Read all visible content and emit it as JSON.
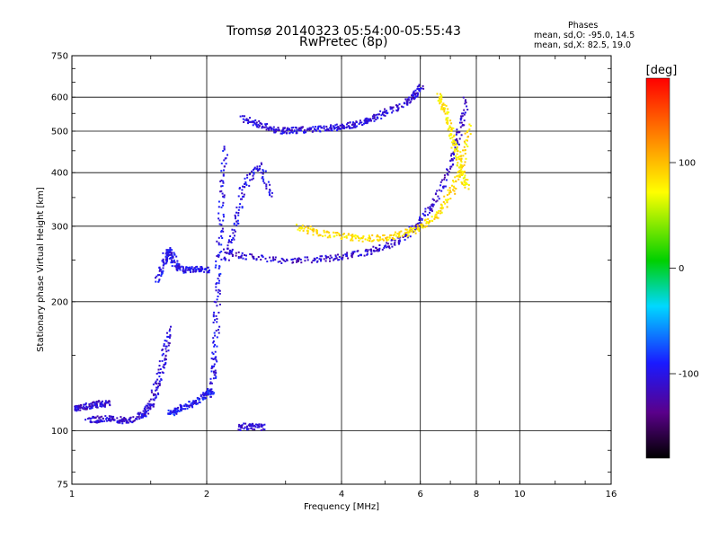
{
  "header": {
    "title_line1": "Tromsø 20140323 05:54:00-05:55:43",
    "title_line2": "RwPretec (8p)",
    "phases_title": "Phases",
    "phases_o": "mean, sd,O: -95.0, 14.5",
    "phases_x": "mean, sd,X:  82.5, 19.0"
  },
  "chart_data": {
    "type": "scatter",
    "title": "Tromsø 20140323 05:54:00-05:55:43",
    "subtitle": "RwPretec (8p)",
    "xlabel": "Frequency [MHz]",
    "ylabel": "Stationary phase Virtual Height [km]",
    "x_scale": "log",
    "y_scale": "log",
    "xlim": [
      1,
      16
    ],
    "ylim": [
      75,
      750
    ],
    "x_ticks": [
      1,
      2,
      4,
      6,
      8,
      10,
      16
    ],
    "y_ticks": [
      75,
      100,
      200,
      300,
      400,
      500,
      600,
      750
    ],
    "grid": true,
    "colorbar": {
      "label": "[deg]",
      "range": [
        -180,
        180
      ],
      "ticks": [
        100,
        0,
        -100
      ]
    },
    "traces": [
      {
        "x": [
          1.0,
          1.05,
          1.1,
          1.15,
          1.2
        ],
        "y": [
          113,
          114,
          115,
          116,
          116
        ],
        "phase": -110
      },
      {
        "x": [
          1.08,
          1.15,
          1.22,
          1.3,
          1.38
        ],
        "y": [
          106,
          107,
          107,
          106,
          107
        ],
        "phase": -108
      },
      {
        "x": [
          1.4,
          1.45,
          1.5,
          1.55,
          1.6,
          1.65
        ],
        "y": [
          108,
          110,
          116,
          130,
          150,
          175
        ],
        "phase": -105
      },
      {
        "x": [
          1.55,
          1.6,
          1.63,
          1.67,
          1.72,
          1.8,
          1.9,
          2.0
        ],
        "y": [
          225,
          250,
          265,
          255,
          240,
          238,
          240,
          238
        ],
        "phase": -100
      },
      {
        "x": [
          1.65,
          1.7,
          1.8,
          1.9,
          2.0,
          2.05
        ],
        "y": [
          110,
          112,
          115,
          118,
          122,
          125
        ],
        "phase": -95
      },
      {
        "x": [
          2.05,
          2.08,
          2.1,
          2.12,
          2.15,
          2.2
        ],
        "y": [
          130,
          150,
          200,
          260,
          350,
          470
        ],
        "phase": -100
      },
      {
        "x": [
          2.2,
          2.3,
          2.4,
          2.6,
          2.8
        ],
        "y": [
          250,
          300,
          370,
          420,
          350
        ],
        "phase": -102
      },
      {
        "x": [
          2.2,
          2.5,
          3.0,
          3.5,
          4.0,
          4.5,
          5.0,
          5.5,
          6.0,
          6.5,
          7.0,
          7.3,
          7.6
        ],
        "y": [
          262,
          255,
          250,
          252,
          255,
          262,
          270,
          285,
          310,
          350,
          420,
          500,
          600
        ],
        "phase": -110
      },
      {
        "x": [
          3.2,
          3.5,
          4.0,
          4.5,
          5.0,
          5.5,
          6.0,
          6.5,
          7.0,
          7.4,
          7.7
        ],
        "y": [
          300,
          292,
          285,
          282,
          283,
          290,
          300,
          320,
          360,
          420,
          520
        ],
        "phase": 85
      },
      {
        "x": [
          2.4,
          2.6,
          2.8,
          3.0,
          3.2,
          3.5,
          3.8,
          4.0,
          4.3,
          4.6,
          5.0,
          5.5,
          5.8,
          6.0
        ],
        "y": [
          540,
          520,
          508,
          503,
          505,
          508,
          512,
          516,
          522,
          532,
          555,
          580,
          610,
          640
        ],
        "phase": -105
      },
      {
        "x": [
          6.6,
          6.8,
          7.0,
          7.2,
          7.4,
          7.6
        ],
        "y": [
          610,
          560,
          500,
          450,
          400,
          370
        ],
        "phase": 80
      },
      {
        "x": [
          2.35,
          2.5,
          2.7
        ],
        "y": [
          102,
          103,
          102
        ],
        "phase": -105
      }
    ]
  }
}
